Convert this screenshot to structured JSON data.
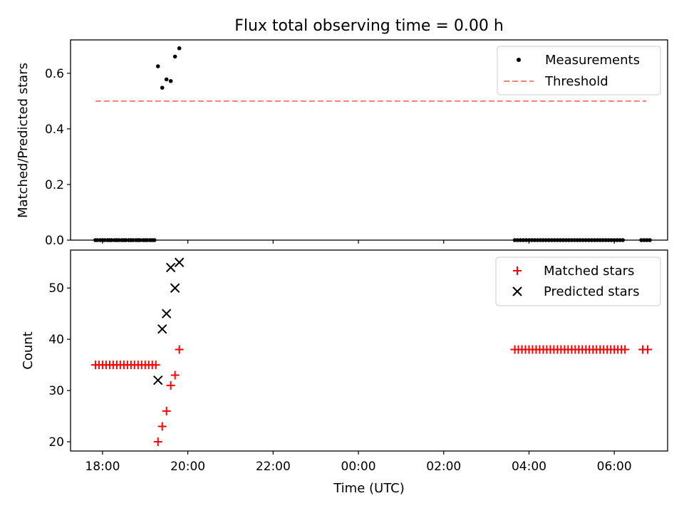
{
  "figure_title": "Flux total observing time = 0.00 h",
  "xlabel": "Time (UTC)",
  "x_ticks": [
    "18:00",
    "20:00",
    "22:00",
    "00:00",
    "02:00",
    "04:00",
    "06:00"
  ],
  "colors": {
    "measurement": "#000000",
    "threshold": "#ff7f7f",
    "matched": "#ff0000",
    "predicted": "#000000"
  },
  "chart_data": [
    {
      "type": "scatter",
      "ylabel": "Matched/Predicted stars",
      "x_unit": "time UTC (hours, evening to next morning)",
      "xlim": [
        "17:15",
        "07:15"
      ],
      "ylim": [
        0,
        0.72
      ],
      "y_ticks": [
        "0.0",
        "0.2",
        "0.4",
        "0.6"
      ],
      "legend": {
        "placement": "top-right",
        "entries": [
          "Measurements",
          "Threshold"
        ]
      },
      "threshold": {
        "value": 0.5,
        "x_start": "17:50",
        "x_end": "06:45"
      },
      "series": [
        {
          "name": "Measurements",
          "x": [
            "17:50",
            "17:53",
            "17:57",
            "18:00",
            "18:03",
            "18:07",
            "18:10",
            "18:13",
            "18:17",
            "18:20",
            "18:23",
            "18:27",
            "18:30",
            "18:33",
            "18:37",
            "18:40",
            "18:43",
            "18:47",
            "18:50",
            "18:53",
            "18:57",
            "19:00",
            "19:03",
            "19:07",
            "19:10",
            "19:13",
            "19:18",
            "19:24",
            "19:30",
            "19:36",
            "19:42",
            "19:48",
            "03:40",
            "03:44",
            "03:48",
            "03:52",
            "03:56",
            "04:00",
            "04:04",
            "04:08",
            "04:12",
            "04:16",
            "04:20",
            "04:24",
            "04:28",
            "04:32",
            "04:36",
            "04:40",
            "04:44",
            "04:48",
            "04:52",
            "04:56",
            "05:00",
            "05:04",
            "05:08",
            "05:12",
            "05:16",
            "05:20",
            "05:24",
            "05:28",
            "05:32",
            "05:36",
            "05:40",
            "05:44",
            "05:48",
            "05:52",
            "05:56",
            "06:00",
            "06:04",
            "06:08",
            "06:12",
            "06:38",
            "06:42",
            "06:46",
            "06:50"
          ],
          "y": [
            0,
            0,
            0,
            0,
            0,
            0,
            0,
            0,
            0,
            0,
            0,
            0,
            0,
            0,
            0,
            0,
            0,
            0,
            0,
            0,
            0,
            0,
            0,
            0,
            0,
            0,
            0.625,
            0.548,
            0.578,
            0.572,
            0.66,
            0.69,
            0,
            0,
            0,
            0,
            0,
            0,
            0,
            0,
            0,
            0,
            0,
            0,
            0,
            0,
            0,
            0,
            0,
            0,
            0,
            0,
            0,
            0,
            0,
            0,
            0,
            0,
            0,
            0,
            0,
            0,
            0,
            0,
            0,
            0,
            0,
            0,
            0,
            0,
            0,
            0,
            0,
            0,
            0
          ]
        }
      ]
    },
    {
      "type": "scatter",
      "ylabel": "Count",
      "xlabel": "Time (UTC)",
      "xlim": [
        "17:15",
        "07:15"
      ],
      "ylim": [
        18.2,
        57.4
      ],
      "y_ticks": [
        "20",
        "30",
        "40",
        "50"
      ],
      "legend": {
        "placement": "top-right",
        "entries": [
          "Matched stars",
          "Predicted stars"
        ]
      },
      "series": [
        {
          "name": "Matched stars",
          "x": [
            "17:50",
            "17:55",
            "18:00",
            "18:05",
            "18:10",
            "18:15",
            "18:20",
            "18:25",
            "18:30",
            "18:35",
            "18:40",
            "18:45",
            "18:50",
            "18:55",
            "19:00",
            "19:05",
            "19:10",
            "19:15",
            "19:18",
            "19:24",
            "19:30",
            "19:36",
            "19:42",
            "19:48",
            "03:40",
            "03:45",
            "03:50",
            "03:55",
            "04:00",
            "04:05",
            "04:10",
            "04:15",
            "04:20",
            "04:25",
            "04:30",
            "04:35",
            "04:40",
            "04:45",
            "04:50",
            "04:55",
            "05:00",
            "05:05",
            "05:10",
            "05:15",
            "05:20",
            "05:25",
            "05:30",
            "05:35",
            "05:40",
            "05:45",
            "05:50",
            "05:55",
            "06:00",
            "06:05",
            "06:10",
            "06:15",
            "06:40",
            "06:47"
          ],
          "y": [
            35,
            35,
            35,
            35,
            35,
            35,
            35,
            35,
            35,
            35,
            35,
            35,
            35,
            35,
            35,
            35,
            35,
            35,
            20,
            23,
            26,
            31,
            33,
            38,
            38,
            38,
            38,
            38,
            38,
            38,
            38,
            38,
            38,
            38,
            38,
            38,
            38,
            38,
            38,
            38,
            38,
            38,
            38,
            38,
            38,
            38,
            38,
            38,
            38,
            38,
            38,
            38,
            38,
            38,
            38,
            38,
            38,
            38
          ]
        },
        {
          "name": "Predicted stars",
          "x": [
            "19:18",
            "19:24",
            "19:30",
            "19:36",
            "19:42",
            "19:48"
          ],
          "y": [
            32,
            42,
            45,
            54,
            50,
            55
          ]
        }
      ]
    }
  ]
}
